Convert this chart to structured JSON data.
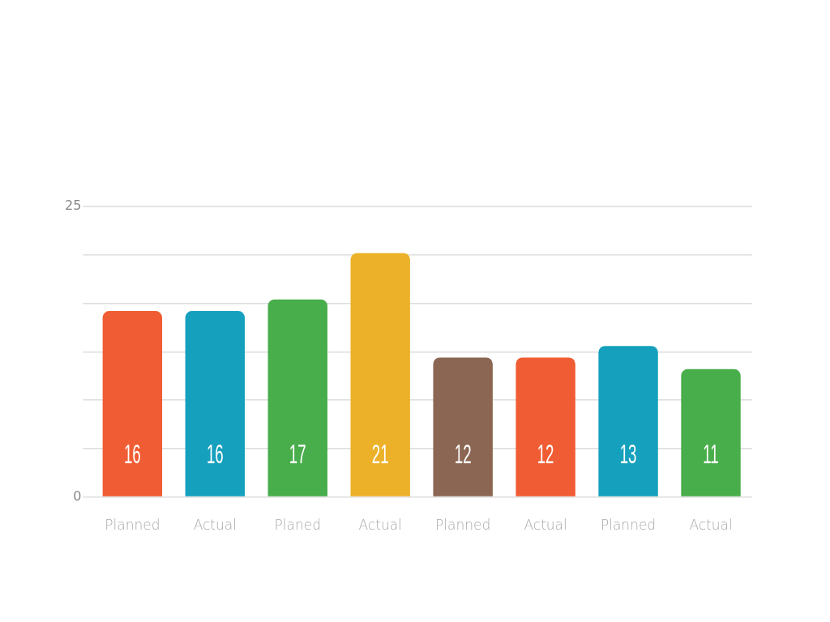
{
  "chart_data": {
    "type": "bar",
    "categories": [
      "Planned",
      "Actual",
      "Planed",
      "Actual",
      "Planned",
      "Actual",
      "Planned",
      "Actual"
    ],
    "values": [
      16,
      16,
      17,
      21,
      12,
      12,
      13,
      11
    ],
    "colors": [
      "#f05c33",
      "#15a0bd",
      "#48ad4b",
      "#ecb128",
      "#8b6652",
      "#f05c33",
      "#15a0bd",
      "#48ad4b"
    ],
    "ylim": [
      0,
      25
    ],
    "yticks": [
      0,
      {
        "value": 4.17,
        "label": null
      },
      {
        "value": 8.33,
        "label": null
      },
      {
        "value": 12.5,
        "label": null
      },
      {
        "value": 16.67,
        "label": null
      },
      {
        "value": 20.83,
        "label": null
      },
      25
    ],
    "grid": "y",
    "legend": false,
    "data_labels": true
  }
}
